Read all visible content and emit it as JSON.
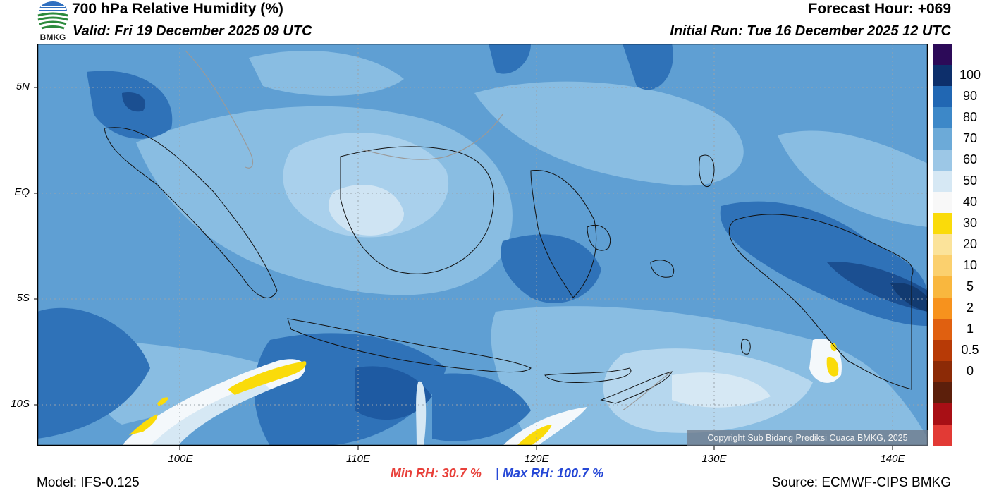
{
  "header": {
    "title": "700 hPa Relative Humidity (%)",
    "valid": "Valid: Fri 19 December 2025 09 UTC",
    "forecast_hour": "Forecast Hour: +069",
    "initial_run": "Initial Run: Tue 16 December 2025 12 UTC",
    "logo_text": "BMKG"
  },
  "map": {
    "lat_labels": [
      "5N",
      "EQ",
      "5S",
      "10S"
    ],
    "lon_labels": [
      "100E",
      "110E",
      "120E",
      "130E",
      "140E"
    ],
    "copyright": "Copyright Sub Bidang Prediksi Cuaca BMKG, 2025"
  },
  "colorbar": {
    "labels": [
      "100",
      "90",
      "80",
      "70",
      "60",
      "50",
      "40",
      "30",
      "20",
      "10",
      "5",
      "2",
      "1",
      "0.5",
      "0"
    ],
    "colors": [
      "#2c0a58",
      "#0d2f6b",
      "#2167b3",
      "#3d88c8",
      "#6caad8",
      "#9cc7e6",
      "#d6e8f4",
      "#f8f8f8",
      "#fadb0a",
      "#fbe39a",
      "#fbd06e",
      "#f9b73e",
      "#f7921d",
      "#e06010",
      "#b73a06",
      "#8c2a06",
      "#5c1f0b",
      "#a80f15",
      "#e23a35"
    ]
  },
  "stats": {
    "min": "Min RH:  30.7 %",
    "separator": "|",
    "max": "Max RH: 100.7 %"
  },
  "footer": {
    "model": "Model: IFS-0.125",
    "source": "Source: ECMWF-CIPS BMKG"
  }
}
